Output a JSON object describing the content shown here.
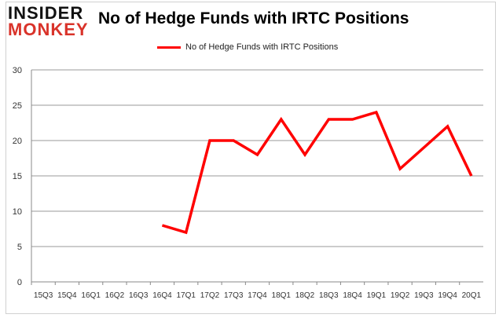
{
  "logo": {
    "line1": "INSIDER",
    "line2": "MONKEY"
  },
  "chart_data": {
    "type": "line",
    "title": "No of Hedge Funds with IRTC Positions",
    "categories": [
      "15Q3",
      "15Q4",
      "16Q1",
      "16Q2",
      "16Q3",
      "16Q4",
      "17Q1",
      "17Q2",
      "17Q3",
      "17Q4",
      "18Q1",
      "18Q2",
      "18Q3",
      "18Q4",
      "19Q1",
      "19Q2",
      "19Q3",
      "19Q4",
      "20Q1"
    ],
    "series": [
      {
        "name": "No of Hedge Funds with IRTC Positions",
        "color": "#ff0000",
        "values": [
          null,
          null,
          null,
          null,
          null,
          8,
          7,
          20,
          20,
          18,
          23,
          18,
          23,
          23,
          24,
          16,
          19,
          22,
          15
        ]
      }
    ],
    "ylim": [
      0,
      30
    ],
    "yticks": [
      0,
      5,
      10,
      15,
      20,
      25,
      30
    ],
    "grid": true,
    "legend": "top"
  }
}
